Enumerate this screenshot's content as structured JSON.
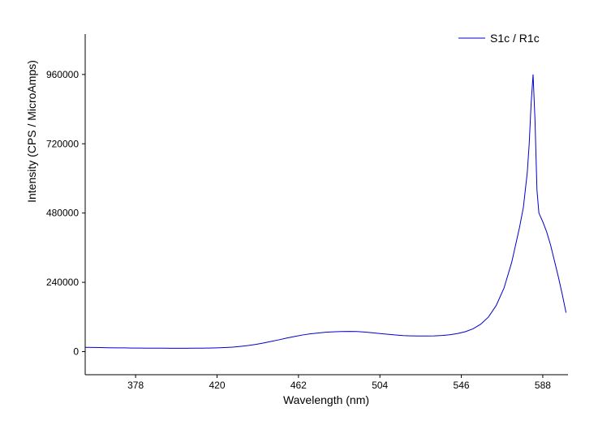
{
  "chart_data": {
    "type": "line",
    "title": "",
    "xlabel": "Wavelength (nm)",
    "ylabel": "Intensity (CPS / MicroAmps)",
    "xlim": [
      352,
      601
    ],
    "ylim": [
      -80000,
      1100000
    ],
    "grid": false,
    "legend_position": "top-right",
    "line_color": "#0000CD",
    "axis_color": "#000000",
    "x_ticks": [
      {
        "value": 378,
        "label": "378"
      },
      {
        "value": 420,
        "label": "420"
      },
      {
        "value": 462,
        "label": "462"
      },
      {
        "value": 504,
        "label": "504"
      },
      {
        "value": 546,
        "label": "546"
      },
      {
        "value": 588,
        "label": "588"
      }
    ],
    "y_ticks": [
      {
        "value": 0,
        "label": "0"
      },
      {
        "value": 240000,
        "label": "240000"
      },
      {
        "value": 480000,
        "label": "480000"
      },
      {
        "value": 720000,
        "label": "720000"
      },
      {
        "value": 960000,
        "label": "960000"
      }
    ],
    "series": [
      {
        "name": "S1c / R1c",
        "x": [
          352,
          356,
          360,
          364,
          368,
          372,
          376,
          380,
          384,
          388,
          392,
          396,
          400,
          404,
          408,
          412,
          416,
          420,
          424,
          428,
          432,
          436,
          440,
          444,
          448,
          452,
          456,
          460,
          464,
          468,
          472,
          476,
          480,
          484,
          488,
          492,
          496,
          500,
          504,
          508,
          512,
          516,
          520,
          524,
          528,
          532,
          536,
          540,
          544,
          548,
          552,
          556,
          560,
          564,
          568,
          572,
          576,
          578,
          580,
          581,
          582,
          583,
          584,
          585,
          586,
          588,
          590,
          592,
          594,
          596,
          598,
          600
        ],
        "y": [
          15000,
          14500,
          14000,
          13500,
          13000,
          13000,
          12500,
          12500,
          12000,
          12000,
          12000,
          11500,
          11500,
          11500,
          12000,
          12000,
          12500,
          13000,
          14000,
          15500,
          18000,
          21000,
          25000,
          30000,
          35500,
          41000,
          47000,
          52500,
          57500,
          61500,
          64500,
          67000,
          68500,
          69500,
          70000,
          69500,
          68000,
          65500,
          62500,
          60000,
          57500,
          55500,
          54500,
          54000,
          54000,
          54500,
          56000,
          58500,
          62500,
          69000,
          79000,
          95000,
          120000,
          160000,
          220000,
          310000,
          430000,
          500000,
          620000,
          720000,
          860000,
          960000,
          800000,
          560000,
          480000,
          450000,
          415000,
          370000,
          315000,
          260000,
          200000,
          135000
        ]
      }
    ]
  }
}
